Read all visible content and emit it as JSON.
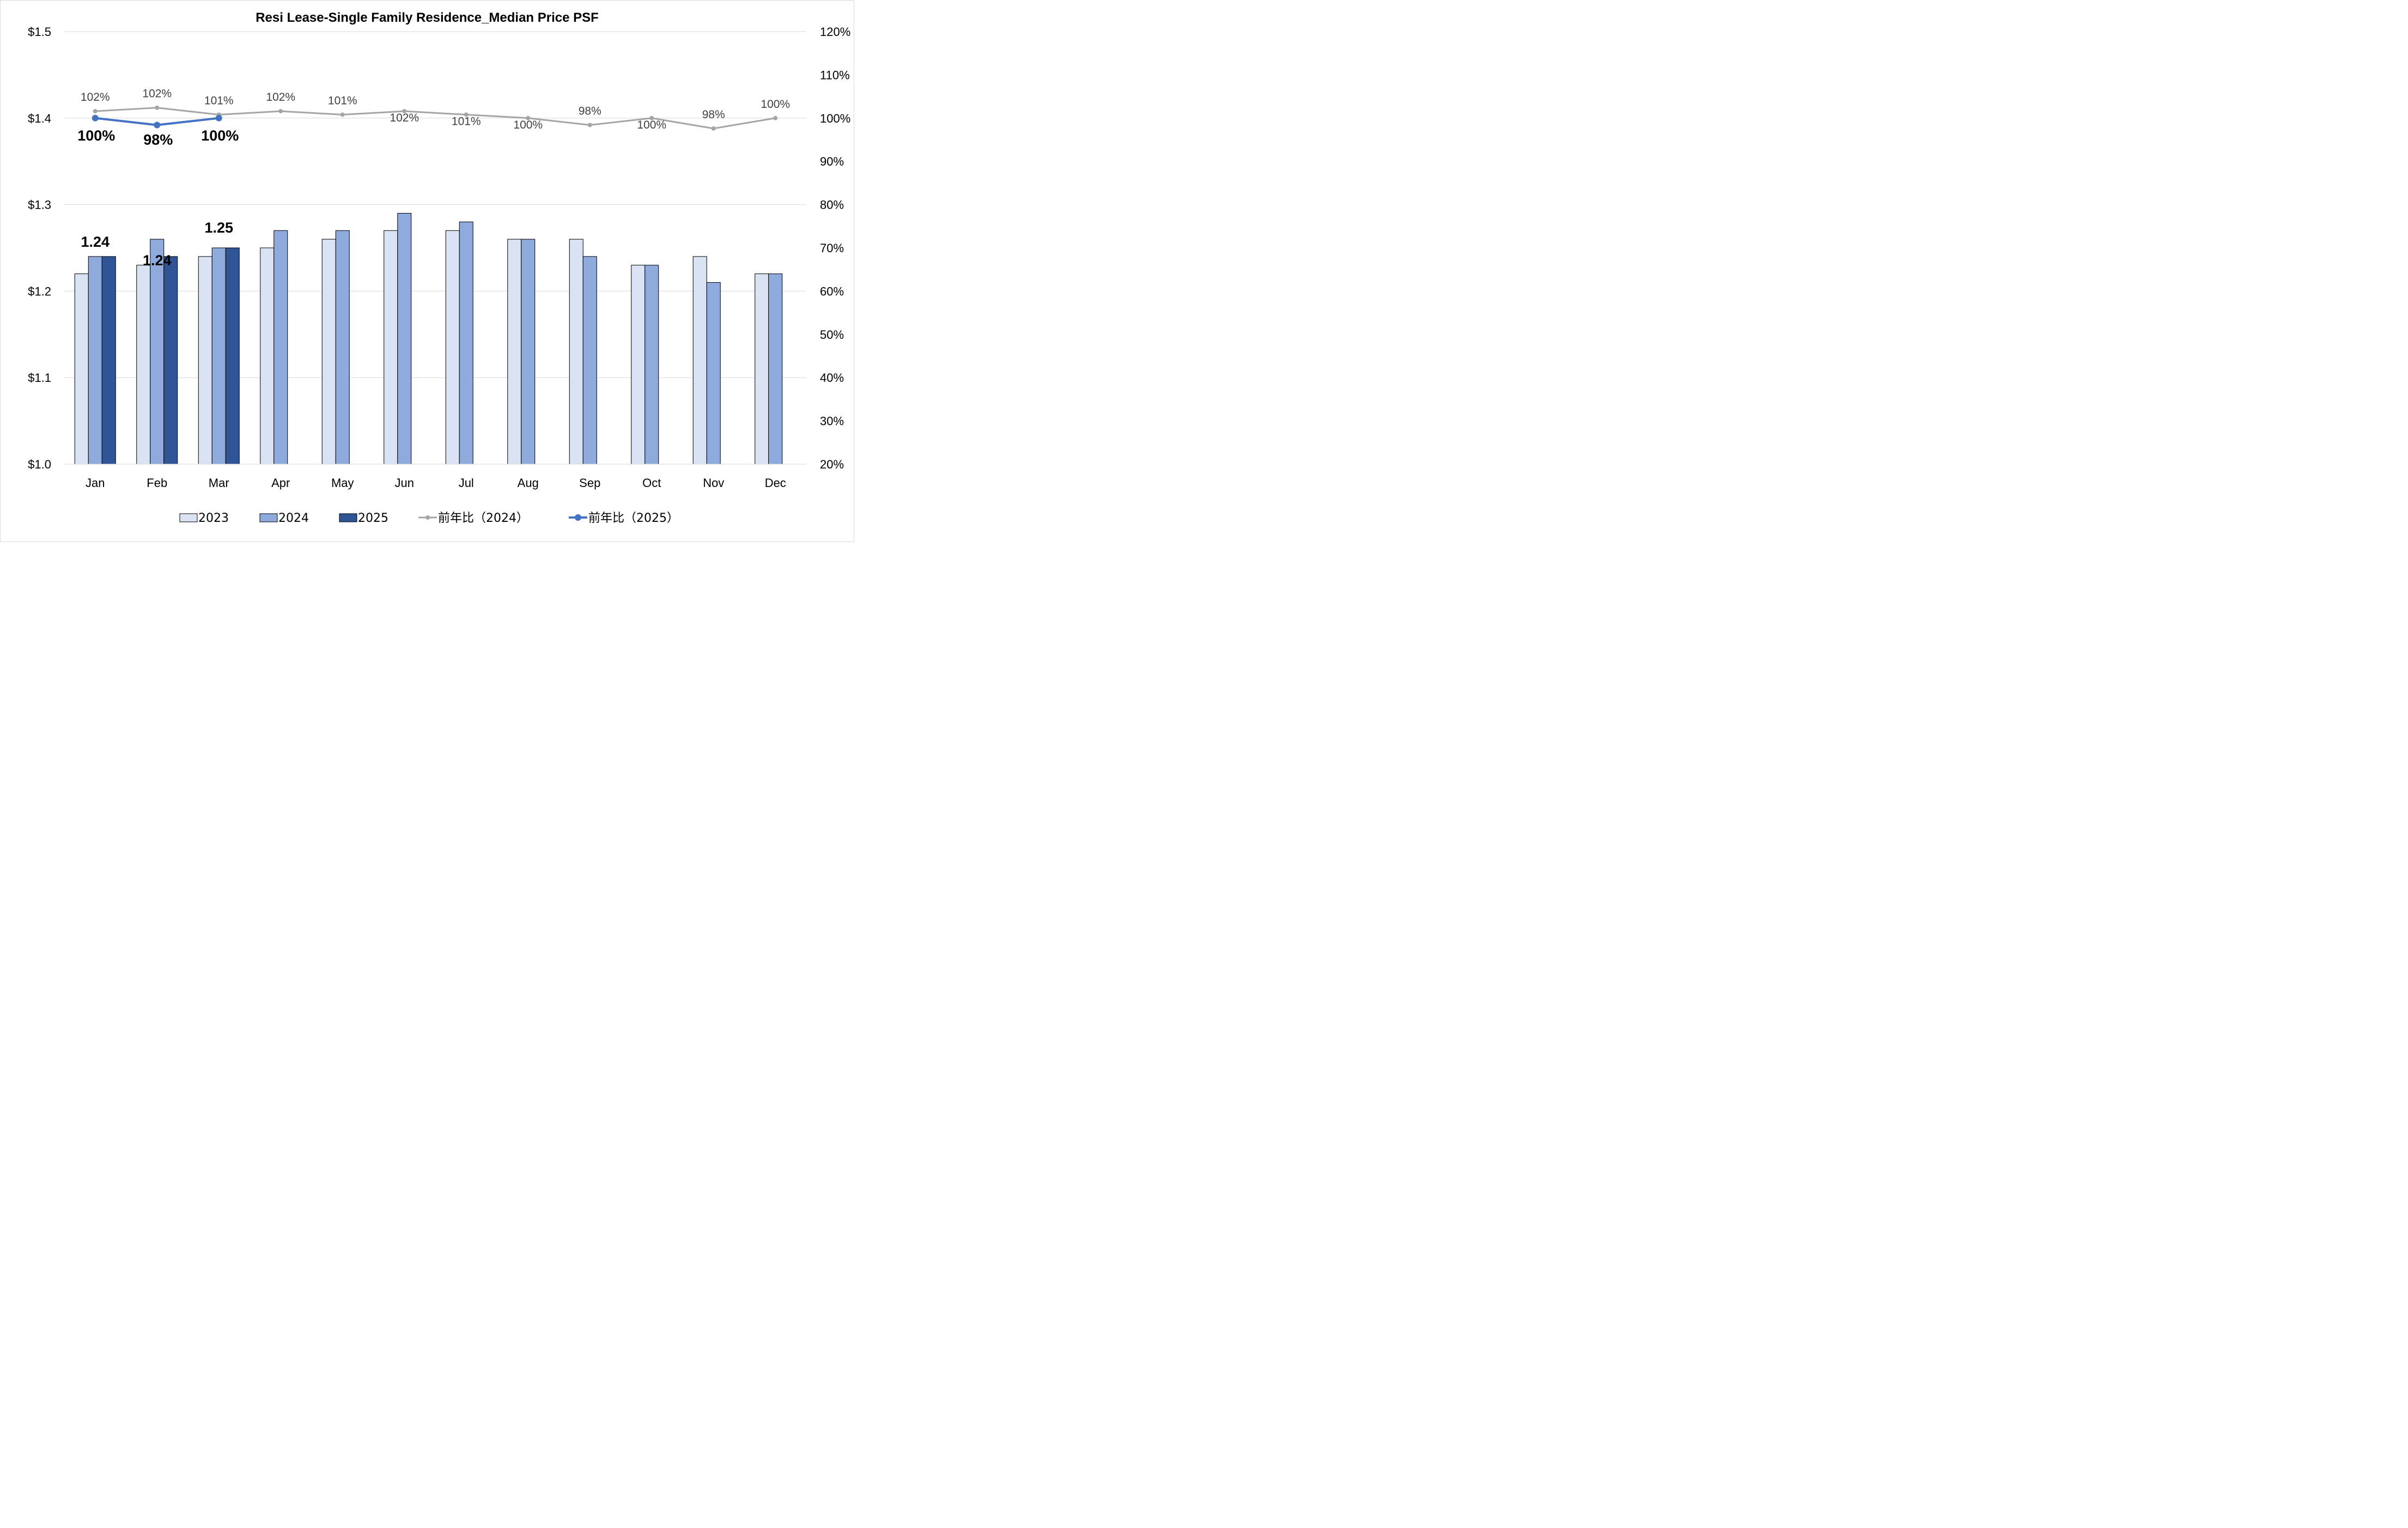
{
  "chart_data": {
    "type": "bar",
    "title": "Resi Lease-Single Family Residence_Median Price PSF",
    "categories": [
      "Jan",
      "Feb",
      "Mar",
      "Apr",
      "May",
      "Jun",
      "Jul",
      "Aug",
      "Sep",
      "Oct",
      "Nov",
      "Dec"
    ],
    "y_left": {
      "ylim": [
        1.0,
        1.5
      ],
      "ticks": [
        1.0,
        1.1,
        1.2,
        1.3,
        1.4,
        1.5
      ],
      "tick_labels": [
        "$1.0",
        "$1.1",
        "$1.2",
        "$1.3",
        "$1.4",
        "$1.5"
      ]
    },
    "y_right": {
      "ylim": [
        20,
        120
      ],
      "ticks": [
        20,
        30,
        40,
        50,
        60,
        70,
        80,
        90,
        100,
        110,
        120
      ],
      "tick_labels": [
        "20%",
        "30%",
        "40%",
        "50%",
        "60%",
        "70%",
        "80%",
        "90%",
        "100%",
        "110%",
        "120%"
      ]
    },
    "grid": "horizontal",
    "legend_position": "bottom",
    "series": [
      {
        "name": "2023",
        "type": "bar",
        "axis": "left",
        "color": "#dae3f3",
        "values": [
          1.22,
          1.23,
          1.24,
          1.25,
          1.26,
          1.27,
          1.27,
          1.26,
          1.26,
          1.23,
          1.24,
          1.22
        ]
      },
      {
        "name": "2024",
        "type": "bar",
        "axis": "left",
        "color": "#8faadc",
        "values": [
          1.24,
          1.26,
          1.25,
          1.27,
          1.27,
          1.29,
          1.28,
          1.26,
          1.24,
          1.23,
          1.21,
          1.22
        ]
      },
      {
        "name": "2025",
        "type": "bar",
        "axis": "left",
        "color": "#2f5597",
        "values": [
          1.24,
          1.24,
          1.25,
          null,
          null,
          null,
          null,
          null,
          null,
          null,
          null,
          null
        ],
        "data_labels": [
          "1.24",
          "1.24",
          "1.25"
        ]
      },
      {
        "name": "前年比（2024）",
        "type": "line",
        "axis": "right",
        "color": "#a5a5a5",
        "values": [
          101.6,
          102.4,
          100.8,
          101.6,
          100.8,
          101.6,
          100.8,
          100.0,
          98.4,
          100.0,
          97.6,
          100.0
        ],
        "data_labels": [
          "102%",
          "102%",
          "101%",
          "102%",
          "101%",
          "102%",
          "101%",
          "100%",
          "98%",
          "100%",
          "98%",
          "100%"
        ]
      },
      {
        "name": "前年比（2025）",
        "type": "line",
        "axis": "right",
        "color": "#4472c4",
        "values": [
          100.0,
          98.4,
          100.0,
          null,
          null,
          null,
          null,
          null,
          null,
          null,
          null,
          null
        ],
        "data_labels": [
          "100%",
          "98%",
          "100%"
        ]
      }
    ]
  }
}
